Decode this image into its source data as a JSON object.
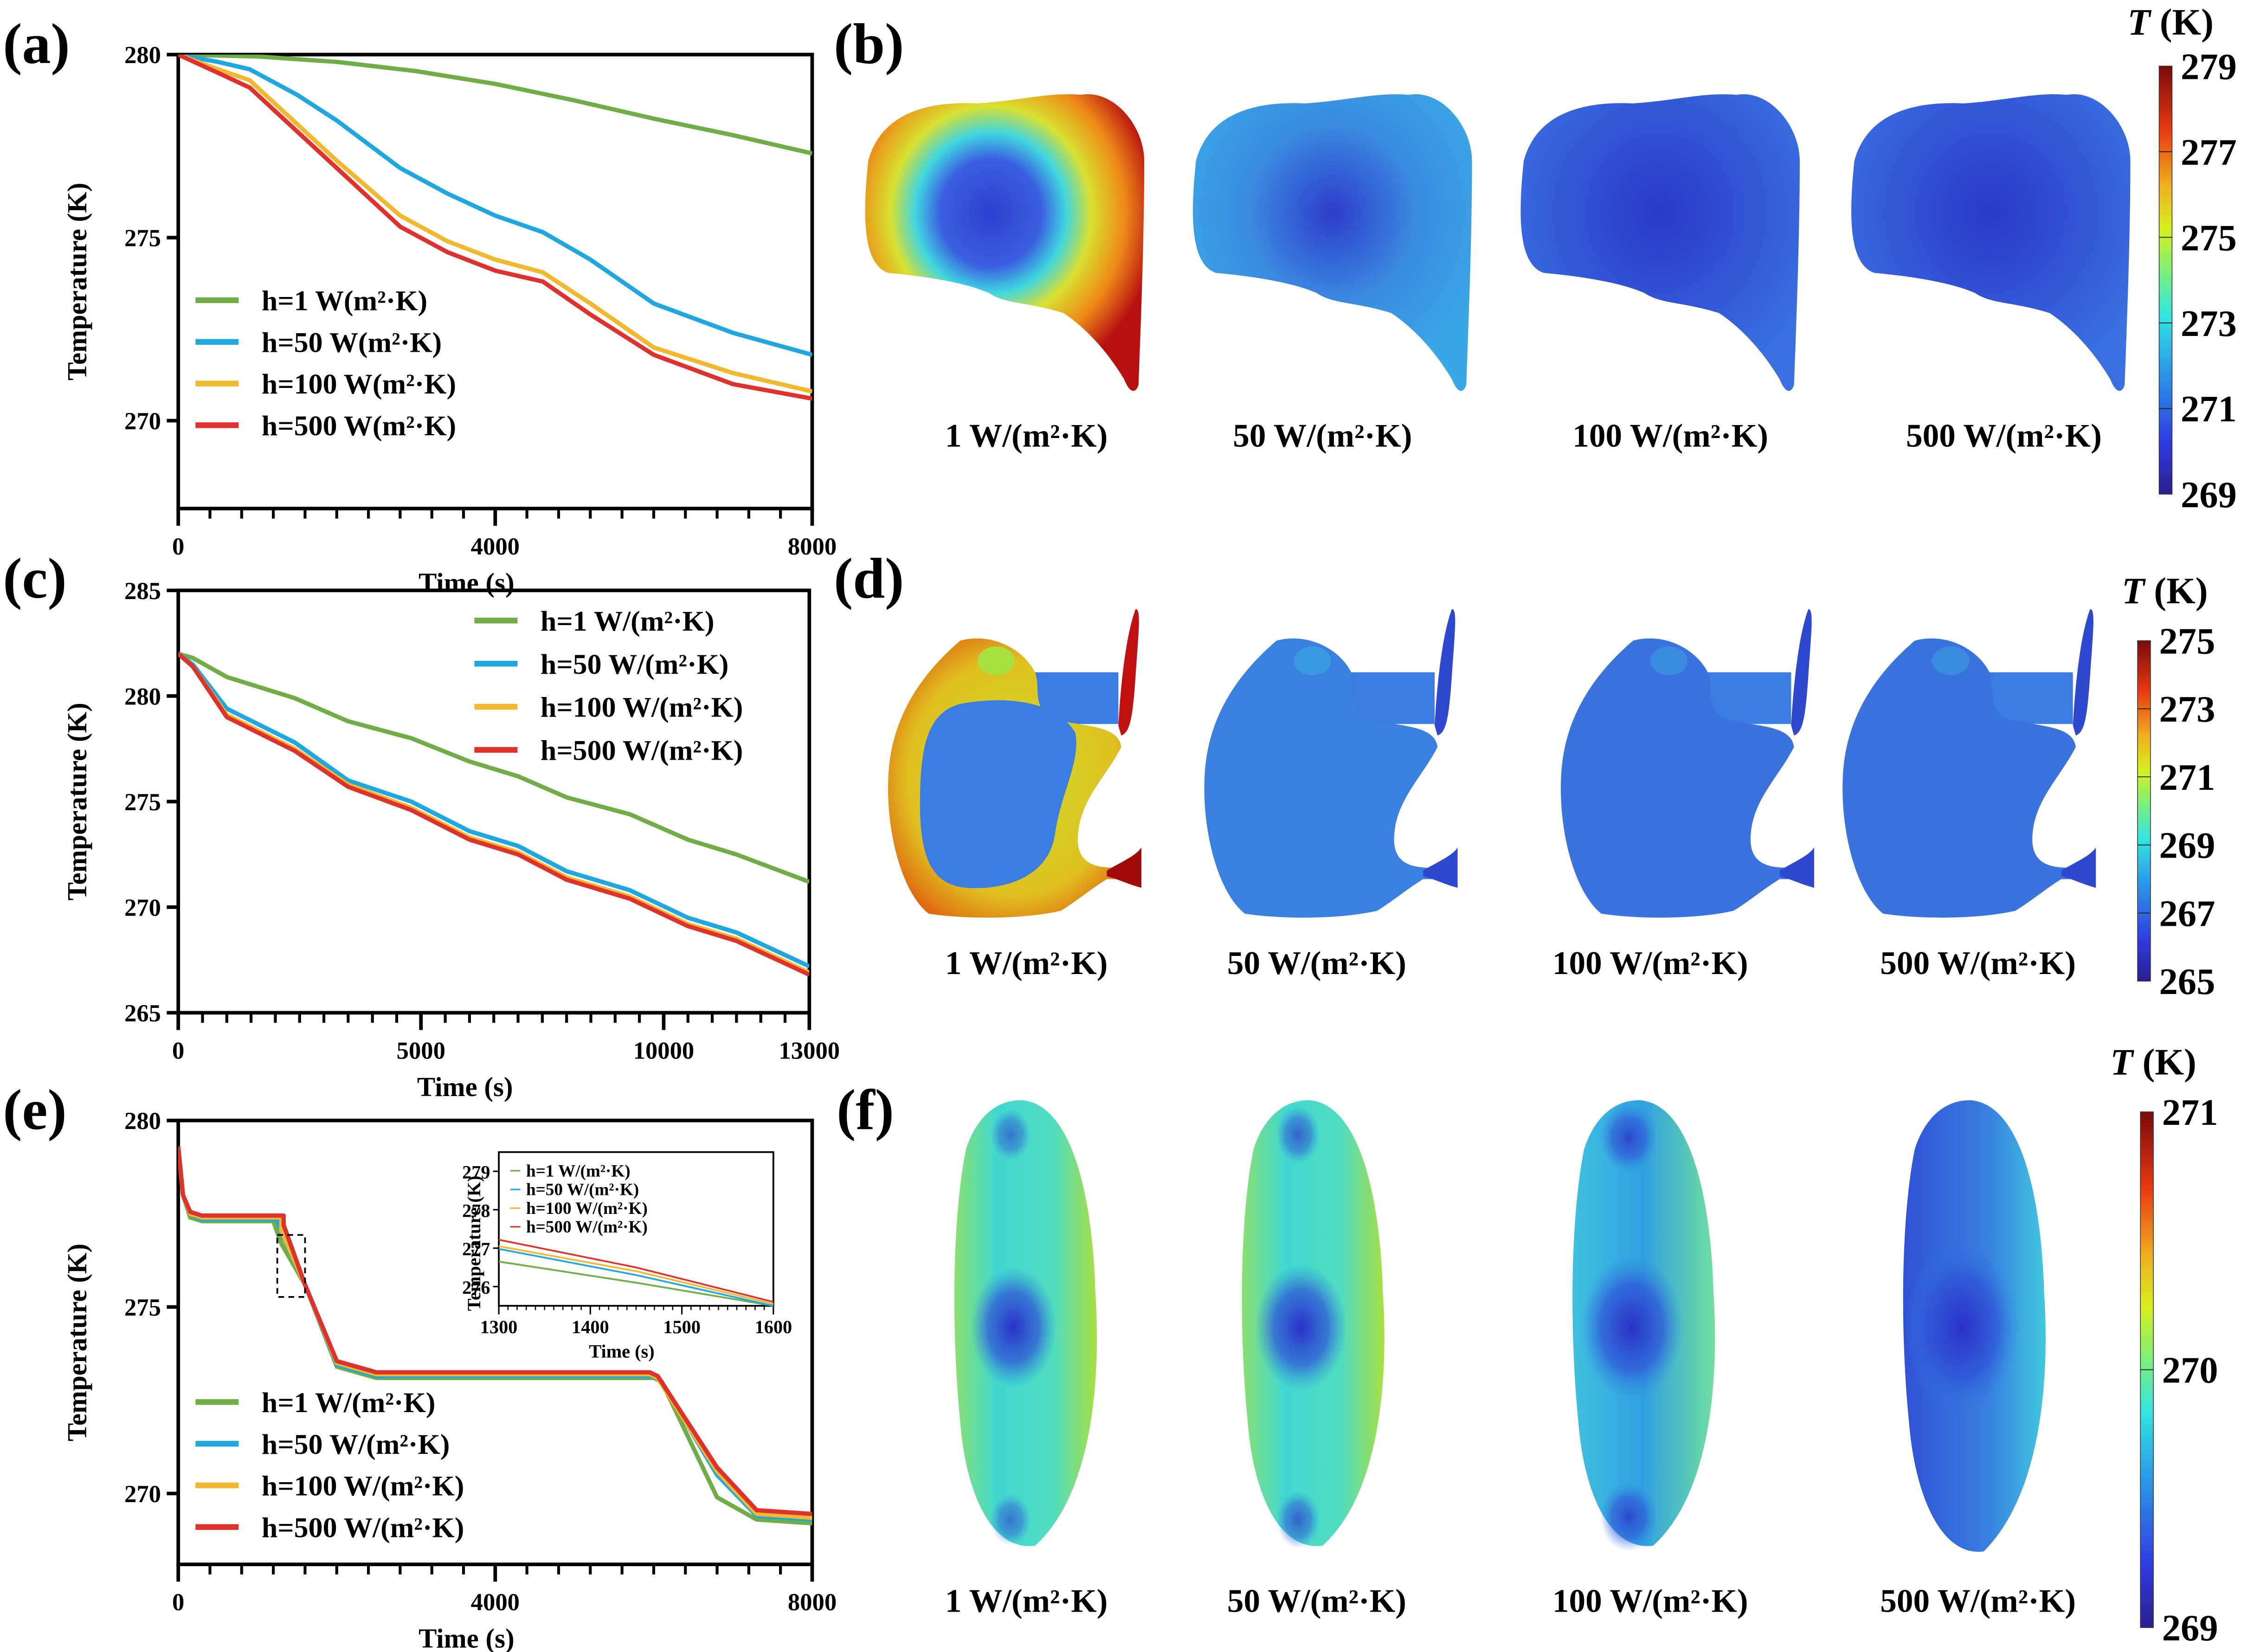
{
  "figure": {
    "panel_labels": [
      "(a)",
      "(b)",
      "(c)",
      "(d)",
      "(e)",
      "(f)"
    ],
    "series_colors": {
      "h1": "#70ad47",
      "h50": "#1fa7e0",
      "h100": "#f2b92e",
      "h500": "#e0322c"
    }
  },
  "chart_data": [
    {
      "id": "a",
      "type": "line",
      "xlabel": "Time (s)",
      "ylabel": "Temperature (K)",
      "xlim": [
        0,
        8000
      ],
      "ylim": [
        267.6,
        280
      ],
      "xticks": [
        0,
        4000,
        8000
      ],
      "xtick_labels": [
        "0",
        "4000",
        "8000"
      ],
      "yticks": [
        270,
        275,
        280
      ],
      "ytick_labels": [
        "270",
        "275",
        "280"
      ],
      "minor_xtick_step": 400,
      "grid": false,
      "legend_position": "bottom-left",
      "series": [
        {
          "name": "h=1 W(m²·K)",
          "color": "#70ad47",
          "x": [
            0,
            1000,
            2000,
            3000,
            4000,
            5000,
            6000,
            7000,
            8000
          ],
          "y": [
            280,
            279.95,
            279.8,
            279.55,
            279.2,
            278.75,
            278.25,
            277.8,
            277.3
          ]
        },
        {
          "name": "h=50 W(m²·K)",
          "color": "#1fa7e0",
          "x": [
            0,
            500,
            900,
            1500,
            2000,
            2800,
            3400,
            4000,
            4600,
            5200,
            6000,
            7000,
            8000
          ],
          "y": [
            280,
            279.8,
            279.6,
            278.9,
            278.2,
            276.9,
            276.2,
            275.6,
            275.15,
            274.4,
            273.2,
            272.4,
            271.8
          ]
        },
        {
          "name": "h=100 W(m²·K)",
          "color": "#f2b92e",
          "x": [
            0,
            500,
            900,
            1500,
            2000,
            2800,
            3400,
            4000,
            4600,
            5200,
            6000,
            7000,
            8000
          ],
          "y": [
            280,
            279.6,
            279.3,
            278.1,
            277.1,
            275.6,
            274.9,
            274.4,
            274.05,
            273.2,
            272.0,
            271.3,
            270.8
          ]
        },
        {
          "name": "h=500 W(m²·K)",
          "color": "#e0322c",
          "x": [
            0,
            500,
            900,
            1500,
            2000,
            2800,
            3400,
            4000,
            4600,
            5200,
            6000,
            7000,
            8000
          ],
          "y": [
            280,
            279.5,
            279.1,
            277.9,
            276.9,
            275.3,
            274.6,
            274.1,
            273.8,
            272.9,
            271.8,
            271.0,
            270.6
          ]
        }
      ]
    },
    {
      "id": "c",
      "type": "line",
      "xlabel": "Time (s)",
      "ylabel": "Temperature (K)",
      "xlim": [
        0,
        13000
      ],
      "ylim": [
        265,
        285
      ],
      "xticks": [
        0,
        5000,
        10000,
        13000
      ],
      "xtick_labels": [
        "0",
        "5000",
        "10000",
        "13000"
      ],
      "yticks": [
        265,
        270,
        275,
        280,
        285
      ],
      "ytick_labels": [
        "265",
        "270",
        "275",
        "280",
        "285"
      ],
      "minor_xtick_step": 500,
      "grid": false,
      "legend_position": "top-right",
      "series": [
        {
          "name": "h=1 W/(m²·K)",
          "color": "#70ad47",
          "x": [
            0,
            300,
            1000,
            2400,
            3500,
            4800,
            6000,
            7000,
            8000,
            9300,
            10500,
            11500,
            13000
          ],
          "y": [
            282,
            281.8,
            280.9,
            279.9,
            278.8,
            278.0,
            276.9,
            276.2,
            275.2,
            274.4,
            273.2,
            272.5,
            271.2
          ]
        },
        {
          "name": "h=50 W/(m²·K)",
          "color": "#1fa7e0",
          "x": [
            0,
            300,
            1000,
            2400,
            3500,
            4800,
            6000,
            7000,
            8000,
            9300,
            10500,
            11500,
            13000
          ],
          "y": [
            282,
            281.5,
            279.4,
            277.8,
            276.0,
            275.0,
            273.6,
            272.9,
            271.7,
            270.8,
            269.5,
            268.8,
            267.2
          ]
        },
        {
          "name": "h=100 W/(m²·K)",
          "color": "#f2b92e",
          "x": [
            0,
            300,
            1000,
            2400,
            3500,
            4800,
            6000,
            7000,
            8000,
            9300,
            10500,
            11500,
            13000
          ],
          "y": [
            282,
            281.4,
            279.1,
            277.5,
            275.8,
            274.7,
            273.3,
            272.6,
            271.4,
            270.5,
            269.2,
            268.5,
            266.9
          ]
        },
        {
          "name": "h=500 W/(m²·K)",
          "color": "#e0322c",
          "x": [
            0,
            300,
            1000,
            2400,
            3500,
            4800,
            6000,
            7000,
            8000,
            9300,
            10500,
            11500,
            13000
          ],
          "y": [
            282,
            281.4,
            279.0,
            277.4,
            275.7,
            274.6,
            273.2,
            272.5,
            271.3,
            270.4,
            269.1,
            268.4,
            266.8
          ]
        }
      ]
    },
    {
      "id": "e",
      "type": "line",
      "xlabel": "Time (s)",
      "ylabel": "Temperature (K)",
      "xlim": [
        0,
        8000
      ],
      "ylim": [
        268.1,
        280
      ],
      "xticks": [
        0,
        4000,
        8000
      ],
      "xtick_labels": [
        "0",
        "4000",
        "8000"
      ],
      "yticks": [
        270,
        275,
        280
      ],
      "ytick_labels": [
        "270",
        "275",
        "280"
      ],
      "minor_xtick_step": 400,
      "grid": false,
      "legend_position": "bottom-left",
      "zoom_box": {
        "x": [
          1250,
          1600
        ],
        "y": [
          275.5,
          276.7
        ]
      },
      "series": [
        {
          "name": "h=1 W/(m²·K)",
          "color": "#70ad47",
          "x": [
            0,
            60,
            150,
            300,
            1200,
            1300,
            1600,
            2000,
            2500,
            6000,
            6100,
            6800,
            7300,
            8000
          ],
          "y": [
            279.3,
            278.0,
            277.4,
            277.3,
            277.3,
            276.7,
            275.6,
            273.4,
            273.1,
            273.1,
            273.0,
            269.9,
            269.3,
            269.2
          ]
        },
        {
          "name": "h=50 W/(m²·K)",
          "color": "#1fa7e0",
          "x": [
            0,
            60,
            150,
            300,
            1250,
            1300,
            1600,
            2000,
            2500,
            6000,
            6100,
            6800,
            7300,
            8000
          ],
          "y": [
            279.3,
            278.0,
            277.5,
            277.35,
            277.35,
            277.0,
            275.6,
            273.45,
            273.15,
            273.15,
            273.0,
            270.5,
            269.4,
            269.3
          ]
        },
        {
          "name": "h=100 W/(m²·K)",
          "color": "#f2b92e",
          "x": [
            0,
            60,
            150,
            300,
            1300,
            1300,
            1600,
            2000,
            2500,
            5950,
            6050,
            6800,
            7300,
            8000
          ],
          "y": [
            279.3,
            278.0,
            277.5,
            277.4,
            277.4,
            277.05,
            275.6,
            273.5,
            273.2,
            273.2,
            273.1,
            270.6,
            269.45,
            269.35
          ]
        },
        {
          "name": "h=500 W/(m²·K)",
          "color": "#e0322c",
          "x": [
            0,
            60,
            150,
            300,
            1330,
            1330,
            1600,
            2000,
            2500,
            5950,
            6050,
            6800,
            7300,
            8000
          ],
          "y": [
            279.3,
            278.0,
            277.55,
            277.45,
            277.45,
            277.2,
            275.6,
            273.55,
            273.25,
            273.25,
            273.15,
            270.7,
            269.55,
            269.45
          ]
        }
      ],
      "inset": {
        "type": "line",
        "xlabel": "Time (s)",
        "ylabel": "Temperature (K)",
        "xlim": [
          1300,
          1600
        ],
        "ylim": [
          275.5,
          279.5
        ],
        "xticks": [
          1300,
          1400,
          1500,
          1600
        ],
        "xtick_labels": [
          "1300",
          "1400",
          "1500",
          "1600"
        ],
        "yticks": [
          276,
          277,
          278,
          279
        ],
        "ytick_labels": [
          "276",
          "277",
          "278",
          "279"
        ],
        "minor_xtick_step": 10,
        "legend_position": "top-right",
        "series": [
          {
            "name": "h=1 W/(m²·K)",
            "color": "#70ad47",
            "x": [
              1300,
              1450,
              1600
            ],
            "y": [
              276.65,
              276.1,
              275.5
            ]
          },
          {
            "name": "h=50 W/(m²·K)",
            "color": "#1fa7e0",
            "x": [
              1300,
              1450,
              1600
            ],
            "y": [
              276.98,
              276.3,
              275.5
            ]
          },
          {
            "name": "h=100 W/(m²·K)",
            "color": "#f2b92e",
            "x": [
              1300,
              1450,
              1600
            ],
            "y": [
              277.05,
              276.4,
              275.55
            ]
          },
          {
            "name": "h=500 W/(m²·K)",
            "color": "#e0322c",
            "x": [
              1300,
              1450,
              1600
            ],
            "y": [
              277.22,
              276.5,
              275.6
            ]
          }
        ]
      }
    }
  ],
  "contour_panels": [
    {
      "id": "b",
      "captions": [
        "1 W/(m²·K)",
        "50 W/(m²·K)",
        "100 W/(m²·K)",
        "500 W/(m²·K)"
      ],
      "colorbar": {
        "title_symbol": "T",
        "title_unit": " (K)",
        "min": 269,
        "max": 279,
        "ticks": [
          "279",
          "277",
          "275",
          "273",
          "271",
          "269"
        ]
      }
    },
    {
      "id": "d",
      "captions": [
        "1 W/(m²·K)",
        "50 W/(m²·K)",
        "100 W/(m²·K)",
        "500 W/(m²·K)"
      ],
      "colorbar": {
        "title_symbol": "T",
        "title_unit": " (K)",
        "min": 265,
        "max": 275,
        "ticks": [
          "275",
          "273",
          "271",
          "269",
          "267",
          "265"
        ]
      }
    },
    {
      "id": "f",
      "captions": [
        "1 W/(m²·K)",
        "50 W/(m²·K)",
        "100 W/(m²·K)",
        "500 W/(m²·K)"
      ],
      "colorbar": {
        "title_symbol": "T",
        "title_unit": " (K)",
        "min": 269,
        "max": 271,
        "ticks": [
          "271",
          "270",
          "269"
        ]
      }
    }
  ]
}
